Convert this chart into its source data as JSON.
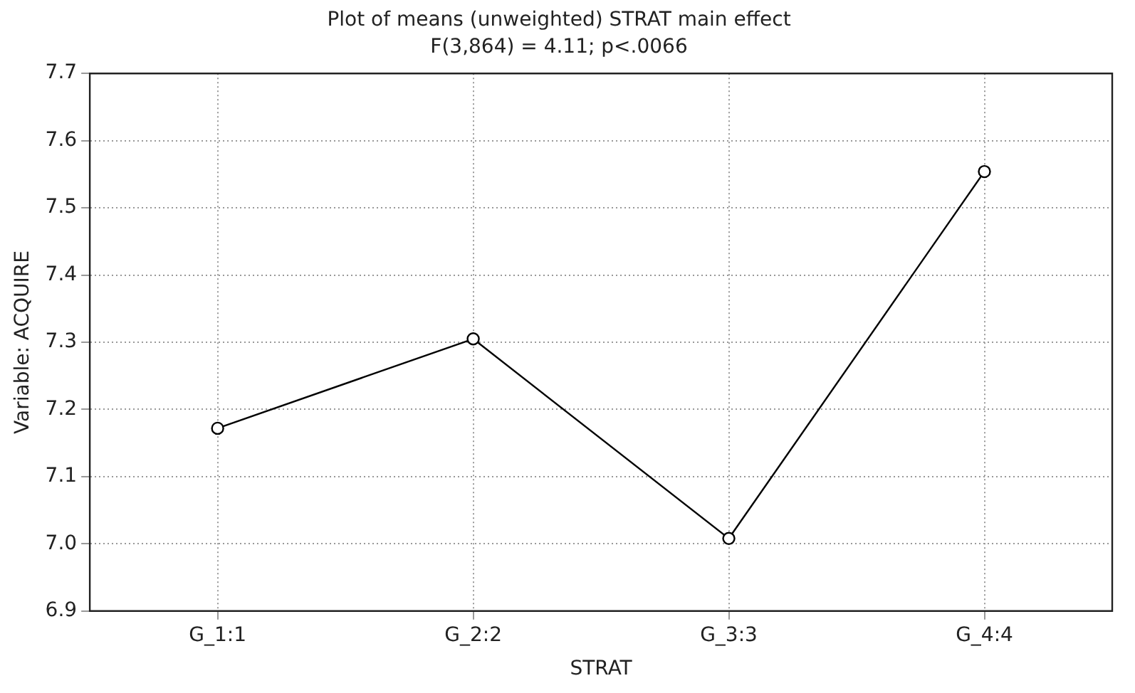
{
  "chart_data": {
    "type": "line",
    "title": "Plot of means (unweighted) STRAT main effect",
    "subtitle": "F(3,864) = 4.11; p<.0066",
    "xlabel": "STRAT",
    "ylabel": "Variable: ACQUIRE",
    "categories": [
      "G_1:1",
      "G_2:2",
      "G_3:3",
      "G_4:4"
    ],
    "series": [
      {
        "color": "#000000",
        "values": [
          7.172,
          7.305,
          7.008,
          7.554
        ]
      }
    ],
    "ylim": [
      6.9,
      7.7
    ],
    "yticks": [
      6.9,
      {
        "value": 7.0,
        "label": "7.0"
      },
      7.1,
      7.2,
      7.3,
      7.4,
      7.5,
      7.6,
      7.7
    ],
    "grid": true,
    "legend": false,
    "marker": "circle",
    "line_style": "solid"
  }
}
